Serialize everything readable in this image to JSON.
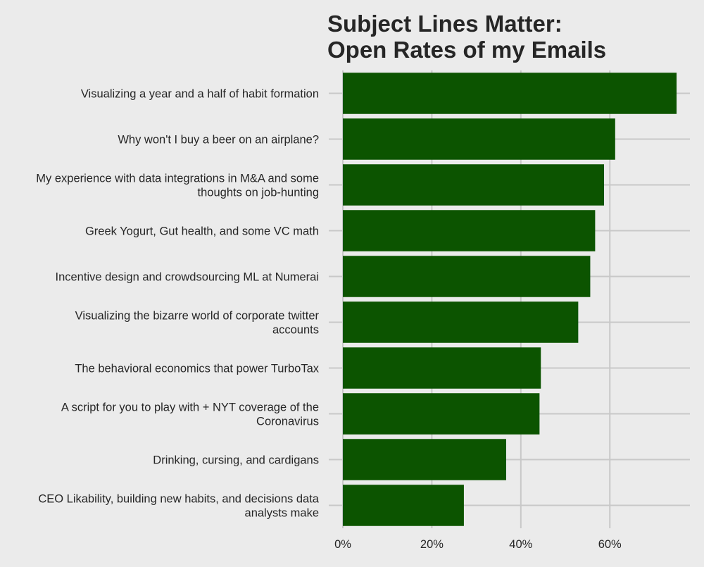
{
  "chart_data": {
    "type": "bar",
    "orientation": "horizontal",
    "title_lines": [
      "Subject Lines Matter:",
      "Open Rates of my Emails"
    ],
    "categories": [
      "Visualizing a year and a half of habit formation",
      "Why won't I buy a beer on an airplane?",
      "My experience with data integrations in M&A and some thoughts on job-hunting",
      "Greek Yogurt, Gut health, and some VC math",
      "Incentive design and crowdsourcing ML at Numerai",
      "Visualizing the bizarre world of corporate twitter accounts",
      "The behavioral economics that power TurboTax",
      "A script for you to play with + NYT coverage of the Coronavirus",
      "Drinking, cursing, and cardigans",
      "CEO Likability, building new habits, and decisions data analysts make"
    ],
    "category_label_lines": [
      [
        "Visualizing a year and a half of habit formation"
      ],
      [
        "Why won't I buy a beer on an airplane?"
      ],
      [
        "My experience with data integrations in M&A and some",
        "thoughts on job-hunting"
      ],
      [
        "Greek Yogurt, Gut health, and some VC math"
      ],
      [
        "Incentive design and crowdsourcing ML at Numerai"
      ],
      [
        "Visualizing the bizarre world of corporate twitter",
        "accounts"
      ],
      [
        "The behavioral economics that power TurboTax"
      ],
      [
        "A script for you to play with + NYT coverage of the",
        "Coronavirus"
      ],
      [
        "Drinking, cursing, and cardigans"
      ],
      [
        "CEO Likability, building new habits, and decisions data",
        "analysts make"
      ]
    ],
    "values": [
      0.75,
      0.612,
      0.587,
      0.567,
      0.556,
      0.529,
      0.445,
      0.442,
      0.367,
      0.272
    ],
    "xlim": [
      0,
      0.78
    ],
    "xticks": [
      0,
      0.2,
      0.4,
      0.6
    ],
    "xtick_labels": [
      "0%",
      "20%",
      "40%",
      "60%"
    ],
    "xlabel": "",
    "ylabel": "",
    "grid": true,
    "bar_color": "#0c5400",
    "background_color": "#ebebeb",
    "grid_color": "#c8c8c8"
  }
}
